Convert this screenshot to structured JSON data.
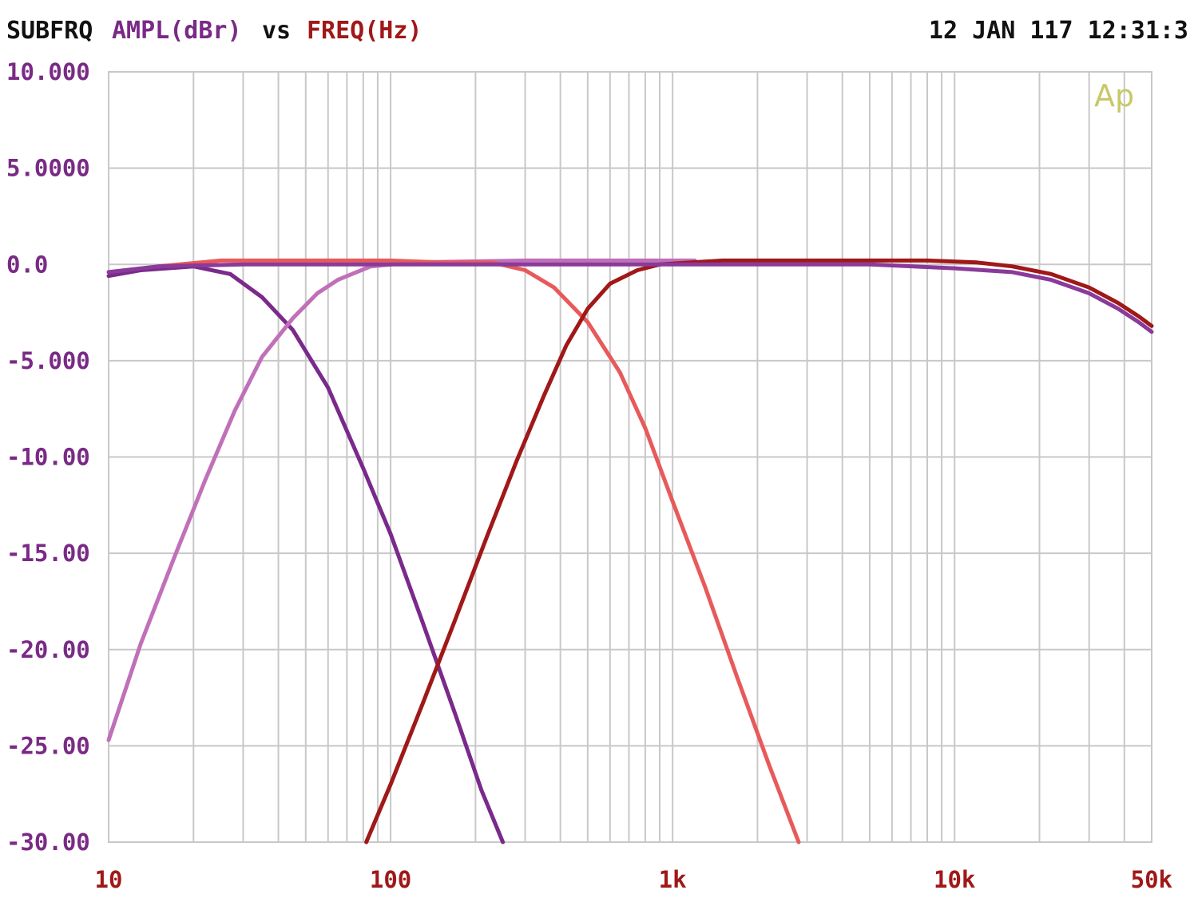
{
  "header": {
    "title_left": "SUBFRQ",
    "title_y": "AMPL(dBr)",
    "title_vs": "vs",
    "title_x": "FREQ(Hz)",
    "timestamp": "12 JAN 117 12:31:3"
  },
  "logo_text": "Ap",
  "colors": {
    "grid": "#c8c8c8",
    "header_text": "#111111",
    "y_axis_text": "#7a2a86",
    "x_axis_text": "#a01818",
    "logo": "#c8c86a"
  },
  "chart_data": {
    "type": "line",
    "x_scale": "log",
    "xlim": [
      10,
      50000
    ],
    "ylim": [
      -30,
      10
    ],
    "grid": true,
    "y_ticks": [
      {
        "value": 10,
        "label": "10.000"
      },
      {
        "value": 5,
        "label": "5.0000"
      },
      {
        "value": 0,
        "label": "0.0"
      },
      {
        "value": -5,
        "label": "-5.000"
      },
      {
        "value": -10,
        "label": "-10.00"
      },
      {
        "value": -15,
        "label": "-15.00"
      },
      {
        "value": -20,
        "label": "-20.00"
      },
      {
        "value": -25,
        "label": "-25.00"
      },
      {
        "value": -30,
        "label": "-30.00"
      }
    ],
    "x_ticks": [
      {
        "value": 10,
        "label": "10"
      },
      {
        "value": 100,
        "label": "100"
      },
      {
        "value": 1000,
        "label": "1k"
      },
      {
        "value": 10000,
        "label": "10k"
      },
      {
        "value": 50000,
        "label": "50k"
      }
    ],
    "series": [
      {
        "color": "#7a2a8a",
        "points": [
          [
            10,
            -0.6
          ],
          [
            13,
            -0.3
          ],
          [
            20,
            -0.1
          ],
          [
            27,
            -0.5
          ],
          [
            35,
            -1.7
          ],
          [
            45,
            -3.4
          ],
          [
            60,
            -6.4
          ],
          [
            80,
            -10.6
          ],
          [
            100,
            -14.0
          ],
          [
            130,
            -18.6
          ],
          [
            170,
            -23.4
          ],
          [
            210,
            -27.3
          ],
          [
            250,
            -30
          ]
        ]
      },
      {
        "color": "#c070b8",
        "points": [
          [
            10,
            -24.7
          ],
          [
            13,
            -19.7
          ],
          [
            17,
            -15.3
          ],
          [
            22,
            -11.2
          ],
          [
            28,
            -7.6
          ],
          [
            35,
            -4.8
          ],
          [
            45,
            -2.8
          ],
          [
            55,
            -1.5
          ],
          [
            65,
            -0.8
          ],
          [
            85,
            -0.1
          ],
          [
            120,
            0.1
          ],
          [
            300,
            0.2
          ],
          [
            600,
            0.2
          ],
          [
            1200,
            0.2
          ]
        ]
      },
      {
        "color": "#e85a5a",
        "points": [
          [
            15,
            -0.1
          ],
          [
            25,
            0.2
          ],
          [
            50,
            0.2
          ],
          [
            100,
            0.2
          ],
          [
            150,
            0.1
          ],
          [
            230,
            0.1
          ],
          [
            300,
            -0.3
          ],
          [
            380,
            -1.2
          ],
          [
            500,
            -3.0
          ],
          [
            650,
            -5.6
          ],
          [
            800,
            -8.5
          ],
          [
            1000,
            -12.3
          ],
          [
            1300,
            -16.7
          ],
          [
            1700,
            -21.5
          ],
          [
            2200,
            -26.0
          ],
          [
            2800,
            -30
          ]
        ]
      },
      {
        "color": "#a01818",
        "points": [
          [
            82,
            -30
          ],
          [
            100,
            -27.0
          ],
          [
            130,
            -22.8
          ],
          [
            170,
            -18.4
          ],
          [
            220,
            -14.1
          ],
          [
            280,
            -10.2
          ],
          [
            350,
            -6.8
          ],
          [
            420,
            -4.2
          ],
          [
            500,
            -2.3
          ],
          [
            600,
            -1.0
          ],
          [
            750,
            -0.3
          ],
          [
            900,
            0.0
          ],
          [
            1500,
            0.2
          ],
          [
            4000,
            0.2
          ],
          [
            8000,
            0.2
          ],
          [
            12000,
            0.1
          ],
          [
            16000,
            -0.1
          ],
          [
            22000,
            -0.5
          ],
          [
            30000,
            -1.2
          ],
          [
            38000,
            -2.0
          ],
          [
            45000,
            -2.7
          ],
          [
            50000,
            -3.2
          ]
        ]
      },
      {
        "color": "#8a3a9a",
        "points": [
          [
            10,
            -0.4
          ],
          [
            15,
            -0.1
          ],
          [
            30,
            0.0
          ],
          [
            100,
            0.0
          ],
          [
            1000,
            0.0
          ],
          [
            5000,
            0.0
          ],
          [
            10000,
            -0.2
          ],
          [
            16000,
            -0.4
          ],
          [
            22000,
            -0.8
          ],
          [
            30000,
            -1.5
          ],
          [
            38000,
            -2.3
          ],
          [
            45000,
            -3.0
          ],
          [
            50000,
            -3.5
          ]
        ]
      }
    ]
  }
}
